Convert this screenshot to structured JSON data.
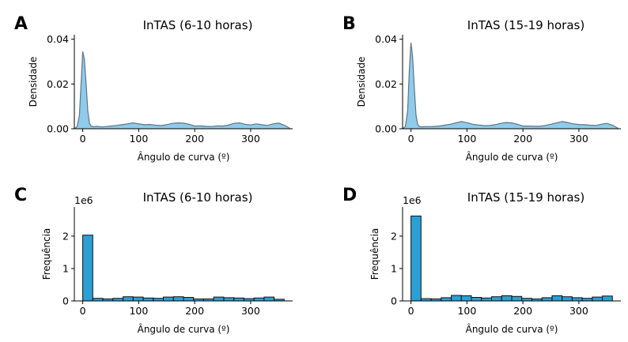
{
  "chart_data": [
    {
      "panel": "A",
      "type": "area",
      "title": "InTAS (6-10 horas)",
      "xlabel": "Ângulo de curva (º)",
      "ylabel": "Densidade",
      "xlim": [
        -15,
        375
      ],
      "ylim": [
        0,
        0.042
      ],
      "xticks": [
        "0",
        "100",
        "200",
        "300"
      ],
      "yticks": [
        "0.00",
        "0.02",
        "0.04"
      ],
      "x": [
        -15,
        -10,
        -6,
        -3,
        0,
        3,
        6,
        9,
        12,
        15,
        20,
        25,
        35,
        50,
        60,
        70,
        80,
        90,
        100,
        110,
        120,
        130,
        140,
        150,
        160,
        170,
        180,
        190,
        200,
        210,
        220,
        230,
        240,
        250,
        260,
        270,
        280,
        290,
        300,
        310,
        320,
        330,
        340,
        350,
        360,
        370
      ],
      "y": [
        0,
        0.001,
        0.006,
        0.02,
        0.0345,
        0.031,
        0.02,
        0.008,
        0.0025,
        0.0012,
        0.0009,
        0.0011,
        0.0008,
        0.0012,
        0.0015,
        0.0018,
        0.0022,
        0.0026,
        0.0022,
        0.0018,
        0.0019,
        0.0016,
        0.0014,
        0.0018,
        0.0024,
        0.0026,
        0.0025,
        0.002,
        0.0012,
        0.0013,
        0.0011,
        0.001,
        0.0013,
        0.0012,
        0.0016,
        0.0024,
        0.0026,
        0.002,
        0.0017,
        0.0022,
        0.0018,
        0.0015,
        0.0022,
        0.0025,
        0.0016,
        0.0002
      ],
      "grid": false
    },
    {
      "panel": "B",
      "type": "area",
      "title": "InTAS (15-19 horas)",
      "xlabel": "Ângulo de curva (º)",
      "ylabel": "Densidade",
      "xlim": [
        -15,
        375
      ],
      "ylim": [
        0,
        0.042
      ],
      "xticks": [
        "0",
        "100",
        "200",
        "300"
      ],
      "yticks": [
        "0.00",
        "0.02",
        "0.04"
      ],
      "x": [
        -15,
        -10,
        -6,
        -3,
        0,
        3,
        6,
        9,
        12,
        15,
        20,
        25,
        35,
        50,
        60,
        70,
        80,
        90,
        100,
        110,
        120,
        130,
        140,
        150,
        160,
        170,
        180,
        190,
        200,
        210,
        220,
        230,
        240,
        250,
        260,
        270,
        280,
        290,
        300,
        310,
        320,
        330,
        340,
        350,
        360,
        370
      ],
      "y": [
        0,
        0.001,
        0.008,
        0.026,
        0.0385,
        0.032,
        0.018,
        0.006,
        0.002,
        0.001,
        0.0008,
        0.001,
        0.0009,
        0.0012,
        0.0016,
        0.002,
        0.0026,
        0.0032,
        0.0027,
        0.002,
        0.0017,
        0.0014,
        0.0014,
        0.0018,
        0.0024,
        0.0028,
        0.0026,
        0.002,
        0.0012,
        0.0012,
        0.0011,
        0.0011,
        0.0015,
        0.002,
        0.0026,
        0.0032,
        0.0028,
        0.0022,
        0.0019,
        0.0018,
        0.0016,
        0.0015,
        0.002,
        0.0024,
        0.0016,
        0.0002
      ],
      "grid": false
    },
    {
      "panel": "C",
      "type": "bar",
      "title": "InTAS (6-10 horas)",
      "xlabel": "Ângulo de curva (º)",
      "ylabel": "Frequência",
      "offset_label": "1e6",
      "xlim": [
        -15,
        375
      ],
      "ylim": [
        0,
        2.9
      ],
      "xticks": [
        "0",
        "100",
        "200",
        "300"
      ],
      "yticks": [
        "0",
        "1",
        "2"
      ],
      "bin_width": 18,
      "bin_start": 0,
      "values": [
        2.03,
        0.08,
        0.06,
        0.08,
        0.13,
        0.12,
        0.09,
        0.08,
        0.12,
        0.13,
        0.11,
        0.06,
        0.06,
        0.12,
        0.1,
        0.09,
        0.07,
        0.09,
        0.12,
        0.05
      ],
      "bar_color": "#2c9fd4"
    },
    {
      "panel": "D",
      "type": "bar",
      "title": "InTAS (15-19 horas)",
      "xlabel": "Ângulo de curva (º)",
      "ylabel": "Frequência",
      "offset_label": "1e6",
      "xlim": [
        -15,
        375
      ],
      "ylim": [
        0,
        2.9
      ],
      "xticks": [
        "0",
        "100",
        "200",
        "300"
      ],
      "yticks": [
        "0",
        "1",
        "2"
      ],
      "bin_width": 18,
      "bin_start": 0,
      "values": [
        2.62,
        0.07,
        0.06,
        0.1,
        0.17,
        0.16,
        0.11,
        0.09,
        0.13,
        0.16,
        0.14,
        0.08,
        0.06,
        0.1,
        0.16,
        0.13,
        0.1,
        0.08,
        0.12,
        0.15
      ],
      "bar_color": "#2c9fd4"
    }
  ],
  "colors": {
    "kde_fill": "#8fcbea",
    "kde_line": "#5f7486",
    "bar_fill": "#2c9fd4",
    "bar_edge": "#111111",
    "axis": "#000000"
  }
}
